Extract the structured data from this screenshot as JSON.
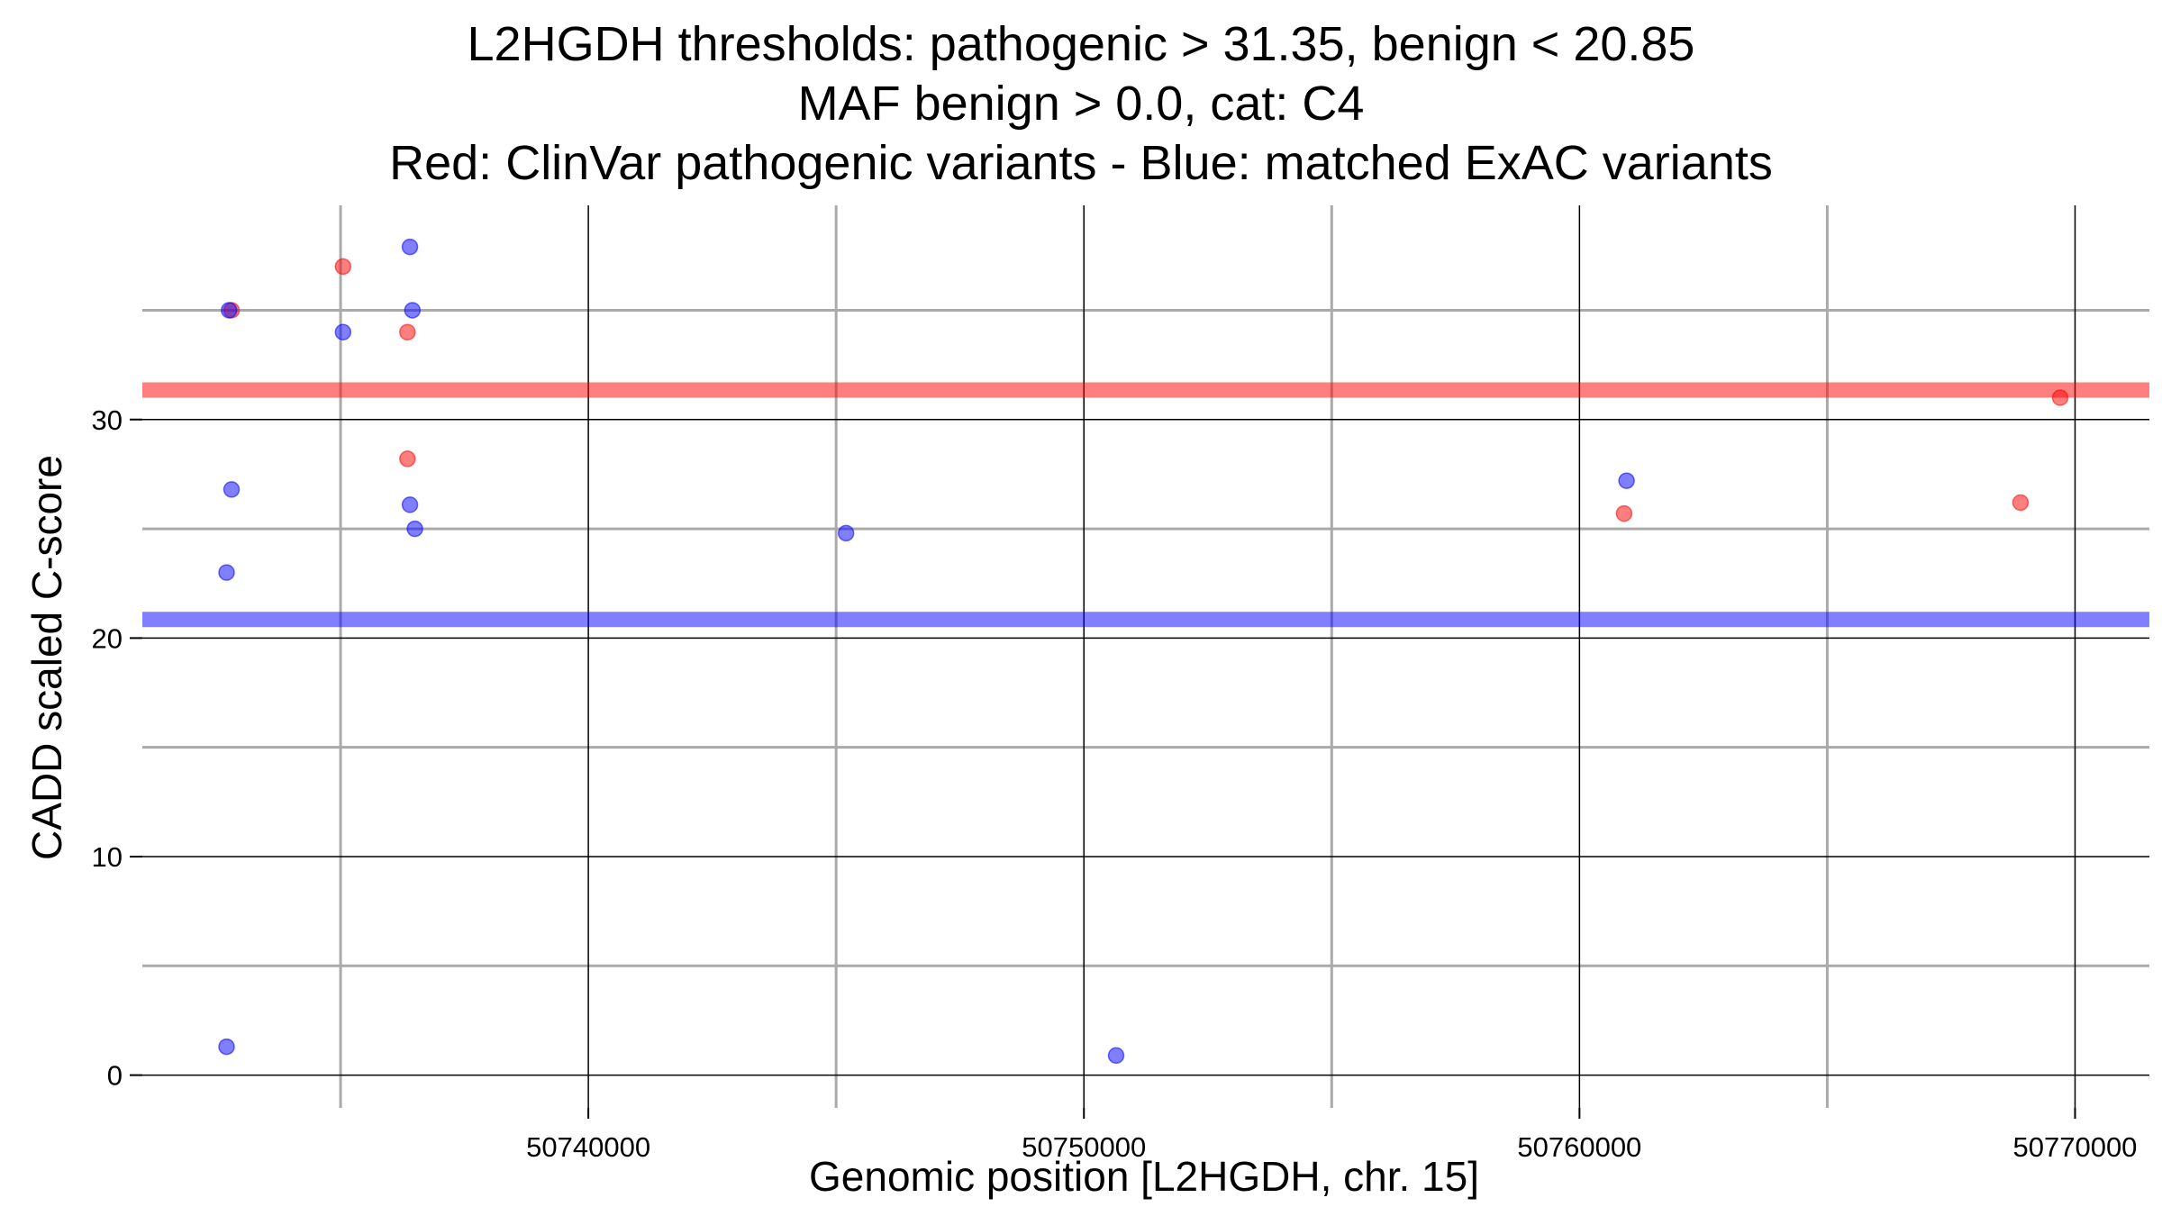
{
  "chart_data": {
    "type": "scatter",
    "title_lines": [
      "L2HGDH thresholds: pathogenic > 31.35, benign < 20.85",
      "MAF benign > 0.0, cat: C4",
      "Red: ClinVar pathogenic variants - Blue: matched ExAC variants"
    ],
    "xlabel": "Genomic position [L2HGDH, chr. 15]",
    "ylabel": "CADD scaled C-score",
    "xlim": [
      50731000,
      50771500
    ],
    "ylim": [
      -1.5,
      39.8
    ],
    "x_major_ticks": [
      50740000,
      50750000,
      50760000,
      50770000
    ],
    "x_minor_ticks": [
      50735000,
      50745000,
      50755000,
      50765000
    ],
    "x_tick_labels": [
      "50740000",
      "50750000",
      "50760000",
      "50770000"
    ],
    "y_major_ticks": [
      0,
      10,
      20,
      30
    ],
    "y_minor_ticks": [
      5,
      15,
      25,
      35
    ],
    "y_tick_labels": [
      "0",
      "10",
      "20",
      "30"
    ],
    "thresholds": [
      {
        "name": "pathogenic",
        "value": 31.35,
        "color": "#ff0000"
      },
      {
        "name": "benign",
        "value": 20.85,
        "color": "#0000ff"
      }
    ],
    "series": [
      {
        "name": "ClinVar pathogenic variants",
        "color": "#ff0000",
        "points": [
          {
            "x": 50732800,
            "y": 35.0
          },
          {
            "x": 50735050,
            "y": 37.0
          },
          {
            "x": 50736350,
            "y": 34.0
          },
          {
            "x": 50736350,
            "y": 28.2
          },
          {
            "x": 50760900,
            "y": 25.7
          },
          {
            "x": 50768900,
            "y": 26.2
          },
          {
            "x": 50769700,
            "y": 31.0
          }
        ]
      },
      {
        "name": "matched ExAC variants",
        "color": "#0000ff",
        "points": [
          {
            "x": 50732750,
            "y": 35.0
          },
          {
            "x": 50732800,
            "y": 26.8
          },
          {
            "x": 50732700,
            "y": 23.0
          },
          {
            "x": 50732700,
            "y": 1.3
          },
          {
            "x": 50735050,
            "y": 34.0
          },
          {
            "x": 50736400,
            "y": 37.9
          },
          {
            "x": 50736450,
            "y": 35.0
          },
          {
            "x": 50736400,
            "y": 26.1
          },
          {
            "x": 50736500,
            "y": 25.0
          },
          {
            "x": 50745200,
            "y": 24.8
          },
          {
            "x": 50750650,
            "y": 0.9
          },
          {
            "x": 50760950,
            "y": 27.2
          }
        ]
      }
    ]
  }
}
